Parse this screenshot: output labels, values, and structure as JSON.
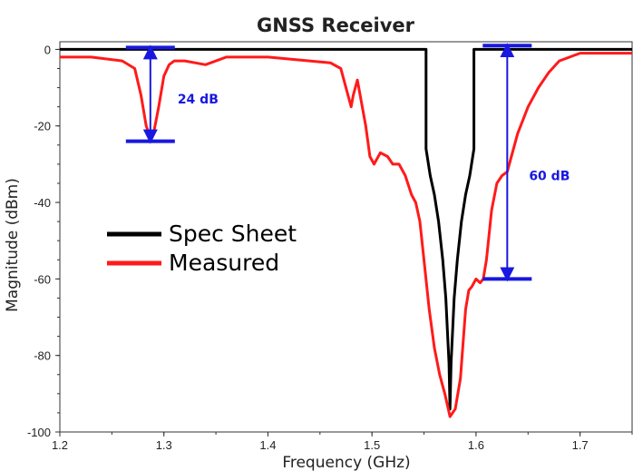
{
  "chart_data": {
    "type": "line",
    "title": "GNSS Receiver",
    "xlabel": "Frequency (GHz)",
    "ylabel": "Magnitude (dBm)",
    "xlim": [
      1.2,
      1.75
    ],
    "ylim": [
      -100,
      2
    ],
    "x_ticks": [
      "1.2",
      "1.3",
      "1.4",
      "1.5",
      "1.6",
      "1.7"
    ],
    "y_ticks": [
      "0",
      "-20",
      "-40",
      "-60",
      "-80",
      "-100"
    ],
    "grid": false,
    "legend": {
      "position": "center-left",
      "entries": [
        "Spec Sheet",
        "Measured"
      ]
    },
    "series": [
      {
        "name": "Spec Sheet",
        "color": "#000000",
        "x": [
          1.2,
          1.552,
          1.552,
          1.556,
          1.56,
          1.564,
          1.568,
          1.571,
          1.574,
          1.575,
          1.576,
          1.579,
          1.582,
          1.586,
          1.59,
          1.594,
          1.598,
          1.598,
          1.75
        ],
        "y": [
          0,
          0,
          -26,
          -33,
          -38,
          -45,
          -55,
          -65,
          -82,
          -94,
          -82,
          -65,
          -55,
          -45,
          -38,
          -33,
          -26,
          0,
          0
        ]
      },
      {
        "name": "Measured",
        "color": "#ff1a1a",
        "x": [
          1.2,
          1.23,
          1.26,
          1.272,
          1.278,
          1.283,
          1.287,
          1.29,
          1.295,
          1.3,
          1.305,
          1.31,
          1.32,
          1.33,
          1.34,
          1.36,
          1.38,
          1.4,
          1.42,
          1.44,
          1.46,
          1.47,
          1.475,
          1.48,
          1.482,
          1.486,
          1.49,
          1.494,
          1.498,
          1.502,
          1.508,
          1.515,
          1.52,
          1.526,
          1.532,
          1.538,
          1.542,
          1.546,
          1.55,
          1.555,
          1.56,
          1.565,
          1.57,
          1.575,
          1.58,
          1.585,
          1.59,
          1.593,
          1.596,
          1.6,
          1.604,
          1.607,
          1.61,
          1.615,
          1.62,
          1.625,
          1.63,
          1.64,
          1.65,
          1.66,
          1.67,
          1.68,
          1.69,
          1.7,
          1.72,
          1.75
        ],
        "y": [
          -2,
          -2,
          -3,
          -5,
          -12,
          -20,
          -23,
          -22,
          -15,
          -7,
          -4,
          -3,
          -3,
          -3.5,
          -4,
          -2,
          -2,
          -2,
          -2.5,
          -3,
          -3.5,
          -5,
          -10,
          -15,
          -12,
          -8,
          -14,
          -20,
          -28,
          -30,
          -27,
          -28,
          -30,
          -30,
          -33,
          -38,
          -40,
          -45,
          -55,
          -68,
          -78,
          -85,
          -90,
          -96,
          -94,
          -86,
          -68,
          -63,
          -62,
          -60,
          -61,
          -60,
          -55,
          -42,
          -35,
          -33,
          -32,
          -22,
          -15,
          -10,
          -6,
          -3,
          -2,
          -1,
          -1,
          -1
        ]
      }
    ],
    "annotations": [
      {
        "label": "24 dB",
        "x": 1.287,
        "y_top": 0.5,
        "y_bottom": -24
      },
      {
        "label": "60 dB",
        "x": 1.63,
        "y_top": 1,
        "y_bottom": -60
      }
    ],
    "annotation_color": "#1818e0"
  }
}
